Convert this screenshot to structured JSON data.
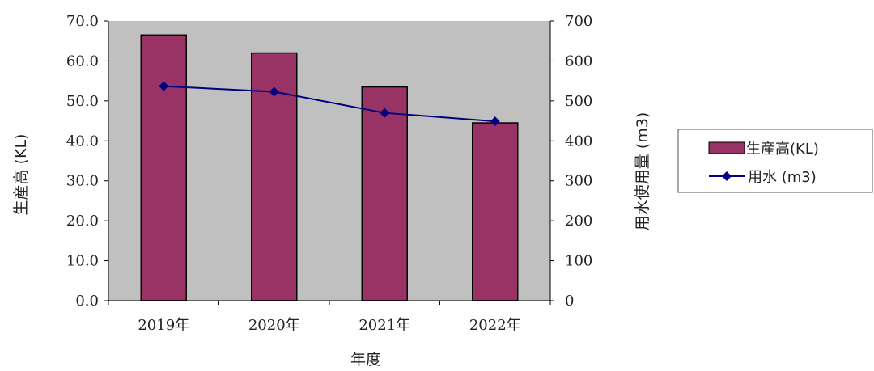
{
  "chart_data": {
    "type": "bar",
    "categories": [
      "2019年",
      "2020年",
      "2021年",
      "2022年"
    ],
    "series": [
      {
        "name": "生産高(KL)",
        "type": "bar",
        "axis": "left",
        "values": [
          66.5,
          62.0,
          53.5,
          44.5
        ],
        "color": "#993366"
      },
      {
        "name": "用水 (m3)",
        "type": "line",
        "axis": "right",
        "values": [
          537,
          523,
          470,
          449
        ],
        "color": "#000080"
      }
    ],
    "xlabel": "年度",
    "ylabel": "生産高 (KL)",
    "y2label": "用水使用量 (m3)",
    "ylim": [
      0,
      70
    ],
    "y2lim": [
      0,
      700
    ],
    "yticks": [
      "0.0",
      "10.0",
      "20.0",
      "30.0",
      "40.0",
      "50.0",
      "60.0",
      "70.0"
    ],
    "y2ticks": [
      "0",
      "100",
      "200",
      "300",
      "400",
      "500",
      "600",
      "700"
    ],
    "plot_background": "#c0c0c0",
    "grid": false,
    "legend_position": "right"
  }
}
